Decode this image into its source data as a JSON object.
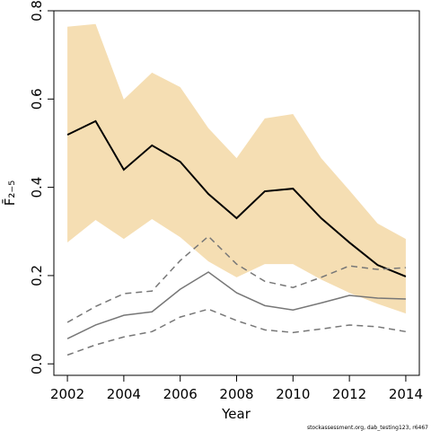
{
  "chart_data": {
    "type": "line",
    "x_label": "Year",
    "y_label": "F̄₂₋₅",
    "footer": "stockassessment.org, dab_testing123, r6467",
    "x": [
      2002,
      2003,
      2004,
      2005,
      2006,
      2007,
      2008,
      2009,
      2010,
      2011,
      2012,
      2013,
      2014
    ],
    "band": {
      "color": "#f5deb3",
      "upper": [
        0.764,
        0.77,
        0.599,
        0.66,
        0.627,
        0.534,
        0.466,
        0.556,
        0.566,
        0.466,
        0.393,
        0.318,
        0.283
      ],
      "lower": [
        0.275,
        0.326,
        0.283,
        0.328,
        0.287,
        0.232,
        0.196,
        0.226,
        0.226,
        0.191,
        0.161,
        0.136,
        0.114
      ]
    },
    "series": [
      {
        "color": "#000000",
        "dashed": false,
        "width": 2,
        "values": [
          0.519,
          0.55,
          0.44,
          0.495,
          0.458,
          0.385,
          0.33,
          0.391,
          0.397,
          0.33,
          0.275,
          0.224,
          0.198
        ]
      },
      {
        "color": "#777777",
        "dashed": false,
        "width": 1.5,
        "values": [
          0.057,
          0.088,
          0.11,
          0.118,
          0.169,
          0.208,
          0.161,
          0.132,
          0.122,
          0.138,
          0.155,
          0.149,
          0.147
        ]
      },
      {
        "color": "#777777",
        "dashed": true,
        "width": 1.5,
        "values": [
          0.094,
          0.13,
          0.159,
          0.165,
          0.234,
          0.289,
          0.226,
          0.187,
          0.173,
          0.196,
          0.222,
          0.214,
          0.218
        ]
      },
      {
        "color": "#777777",
        "dashed": true,
        "width": 1.5,
        "values": [
          0.02,
          0.043,
          0.061,
          0.073,
          0.106,
          0.124,
          0.098,
          0.077,
          0.071,
          0.079,
          0.088,
          0.084,
          0.073
        ]
      }
    ],
    "xlim": [
      2001.52,
      2014.48
    ],
    "ylim": [
      -0.026,
      0.8
    ],
    "xticks": [
      2002,
      2004,
      2006,
      2008,
      2010,
      2012,
      2014
    ],
    "yticks": [
      {
        "value": 0,
        "label": "0.0"
      },
      0.2,
      0.4,
      0.6,
      0.8
    ],
    "grid": false
  }
}
